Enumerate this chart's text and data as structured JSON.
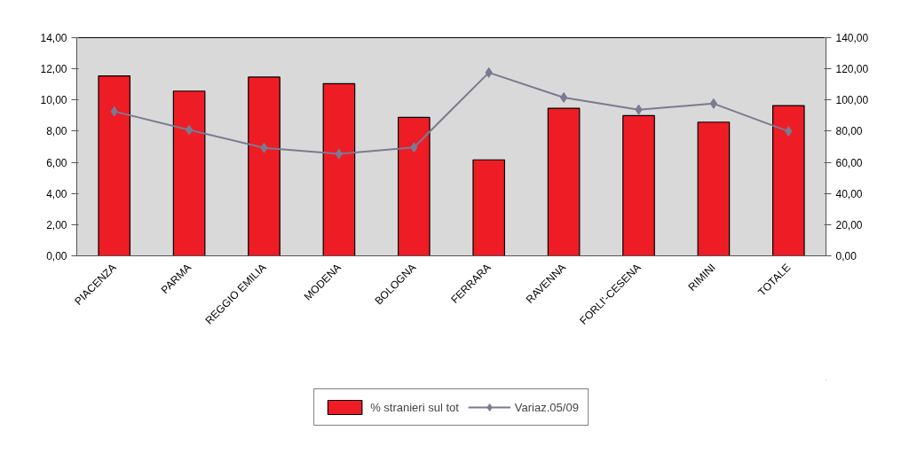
{
  "chart_data": {
    "type": "bar",
    "categories": [
      "PIACENZA",
      "PARMA",
      "REGGIO EMILIA",
      "MODENA",
      "BOLOGNA",
      "FERRARA",
      "RAVENNA",
      "FORLI'-CESENA",
      "RIMINI",
      "TOTALE"
    ],
    "series": [
      {
        "name": "% stranieri sul tot",
        "color": "#ee1c25",
        "values": [
          11.55,
          10.57,
          11.47,
          11.05,
          8.88,
          6.16,
          9.47,
          9.0,
          8.58,
          9.64
        ]
      },
      {
        "name": "Variaz.05/09",
        "type": "line",
        "axis": "y2",
        "color": "#7a7a92",
        "marker": "diamond",
        "values": [
          92.7,
          80.8,
          69.3,
          65.4,
          69.6,
          117.6,
          101.6,
          93.8,
          97.7,
          79.9
        ]
      }
    ],
    "ylim": [
      0,
      14
    ],
    "yticks": [
      {
        "value": 0,
        "label": "0,00"
      },
      {
        "value": 2,
        "label": "2,00"
      },
      {
        "value": 4,
        "label": "4,00"
      },
      {
        "value": 6,
        "label": "6,00"
      },
      {
        "value": 8,
        "label": "8,00"
      },
      {
        "value": 10,
        "label": "10,00"
      },
      {
        "value": 12,
        "label": "12,00"
      },
      {
        "value": 14,
        "label": "14,00"
      }
    ],
    "y2lim": [
      0,
      140
    ],
    "y2ticks": [
      {
        "value": 0,
        "label": "0,00"
      },
      {
        "value": 20,
        "label": "20,00"
      },
      {
        "value": 40,
        "label": "40,00"
      },
      {
        "value": 60,
        "label": "60,00"
      },
      {
        "value": 80,
        "label": "80,00"
      },
      {
        "value": 100,
        "label": "100,00"
      },
      {
        "value": 120,
        "label": "120,00"
      },
      {
        "value": 140,
        "label": "140,00"
      }
    ],
    "grid": false,
    "legend": "bottom"
  }
}
